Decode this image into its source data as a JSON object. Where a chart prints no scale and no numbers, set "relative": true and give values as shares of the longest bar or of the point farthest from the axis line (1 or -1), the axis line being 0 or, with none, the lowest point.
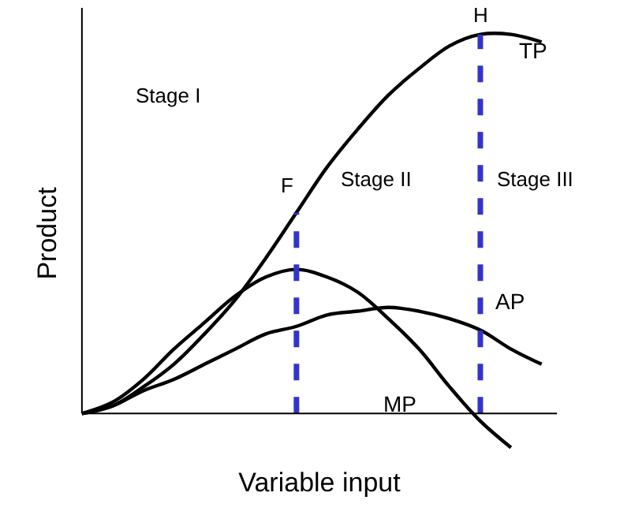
{
  "chart_data": {
    "type": "line",
    "relative": true,
    "xlabel": "Variable input",
    "ylabel": "Product",
    "categories": [
      null,
      null,
      null,
      null,
      null,
      null,
      null,
      null,
      null,
      null,
      null,
      null,
      null,
      null,
      null,
      null
    ],
    "series": [
      {
        "name": "TP",
        "color": "#000000",
        "values": [
          0,
          0.02,
          0.07,
          0.13,
          0.21,
          0.3,
          0.41,
          0.53,
          0.65,
          0.75,
          0.84,
          0.91,
          0.97,
          1.0,
          1.0,
          0.98
        ]
      },
      {
        "name": "AP",
        "color": "#000000",
        "values": [
          0,
          0.02,
          0.06,
          0.09,
          0.13,
          0.17,
          0.21,
          0.23,
          0.26,
          0.27,
          0.28,
          0.27,
          0.25,
          0.22,
          0.17,
          0.13
        ]
      },
      {
        "name": "MP",
        "color": "#000000",
        "values": [
          0,
          0.03,
          0.09,
          0.17,
          0.24,
          0.31,
          0.36,
          0.38,
          0.36,
          0.32,
          0.25,
          0.17,
          0.07,
          -0.02,
          -0.09,
          null
        ]
      }
    ],
    "annotations": [
      "F",
      "H",
      "Stage I",
      "Stage II",
      "Stage III"
    ],
    "legend": false,
    "marker": "none",
    "line_style": "solid"
  }
}
